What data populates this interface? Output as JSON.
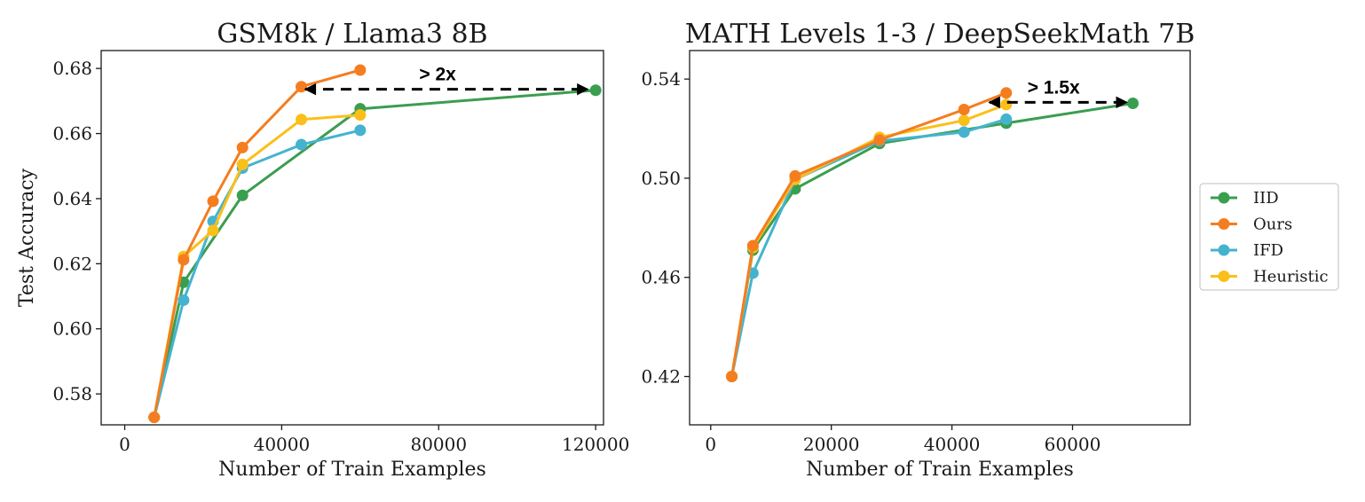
{
  "colors": {
    "IID": "#3a9e4f",
    "Ours": "#f47d20",
    "IFD": "#45b3cf",
    "Heuristic": "#fbbf1a"
  },
  "legend": {
    "placement": "right",
    "entries": [
      "IID",
      "Ours",
      "IFD",
      "Heuristic"
    ]
  },
  "chart_data": [
    {
      "type": "line",
      "title": "GSM8k / Llama3 8B",
      "xlabel": "Number of Train Examples",
      "ylabel": "Test Accuracy",
      "xlim": [
        -6000,
        122000
      ],
      "ylim": [
        0.5705,
        0.6855
      ],
      "xticks": [
        0,
        40000,
        80000,
        120000
      ],
      "xtick_labels": [
        "0",
        "40000",
        "80000",
        "120000"
      ],
      "yticks": [
        0.58,
        0.6,
        0.62,
        0.64,
        0.66,
        0.68
      ],
      "ytick_labels": [
        "0.58",
        "0.60",
        "0.62",
        "0.64",
        "0.66",
        "0.68"
      ],
      "grid": false,
      "series": [
        {
          "name": "IID",
          "x": [
            7500,
            15000,
            30000,
            60000,
            120000
          ],
          "y": [
            0.5728,
            0.6143,
            0.641,
            0.6676,
            0.6733
          ]
        },
        {
          "name": "IFD",
          "x": [
            7500,
            15000,
            22500,
            30000,
            45000,
            60000
          ],
          "y": [
            0.5728,
            0.6088,
            0.633,
            0.6494,
            0.6566,
            0.661
          ]
        },
        {
          "name": "Heuristic",
          "x": [
            7500,
            15000,
            22500,
            30000,
            45000,
            60000
          ],
          "y": [
            0.5728,
            0.6222,
            0.6302,
            0.6505,
            0.6643,
            0.6657
          ]
        },
        {
          "name": "Ours",
          "x": [
            7500,
            15000,
            22500,
            30000,
            45000,
            60000
          ],
          "y": [
            0.5728,
            0.6212,
            0.6392,
            0.6557,
            0.6744,
            0.6795
          ]
        }
      ],
      "annotation": {
        "text": "> 2x",
        "arrow_from": [
          46000,
          0.6736
        ],
        "arrow_to": [
          118000,
          0.6736
        ]
      }
    },
    {
      "type": "line",
      "title": "MATH Levels 1-3 / DeepSeekMath 7B",
      "xlabel": "Number of Train Examples",
      "ylabel": "",
      "xlim": [
        -3500,
        79500
      ],
      "ylim": [
        0.4005,
        0.5515
      ],
      "xticks": [
        0,
        20000,
        40000,
        60000
      ],
      "xtick_labels": [
        "0",
        "20000",
        "40000",
        "60000"
      ],
      "yticks": [
        0.42,
        0.46,
        0.5,
        0.54
      ],
      "ytick_labels": [
        "0.42",
        "0.46",
        "0.50",
        "0.54"
      ],
      "grid": false,
      "series": [
        {
          "name": "IID",
          "x": [
            3500,
            7000,
            14000,
            28000,
            49000,
            70000
          ],
          "y": [
            0.42,
            0.471,
            0.4957,
            0.514,
            0.5222,
            0.5302
          ]
        },
        {
          "name": "IFD",
          "x": [
            3500,
            7000,
            14000,
            28000,
            42000,
            49000
          ],
          "y": [
            0.42,
            0.4617,
            0.4995,
            0.515,
            0.5186,
            0.5238
          ]
        },
        {
          "name": "Heuristic",
          "x": [
            3500,
            7000,
            14000,
            28000,
            42000,
            49000
          ],
          "y": [
            0.42,
            0.472,
            0.4995,
            0.5165,
            0.5233,
            0.5297
          ]
        },
        {
          "name": "Ours",
          "x": [
            3500,
            7000,
            14000,
            28000,
            42000,
            49000
          ],
          "y": [
            0.42,
            0.4728,
            0.5009,
            0.5154,
            0.5277,
            0.5344
          ]
        }
      ],
      "annotation": {
        "text": "> 1.5x",
        "arrow_from": [
          46200,
          0.5306
        ],
        "arrow_to": [
          69000,
          0.5306
        ]
      }
    }
  ]
}
